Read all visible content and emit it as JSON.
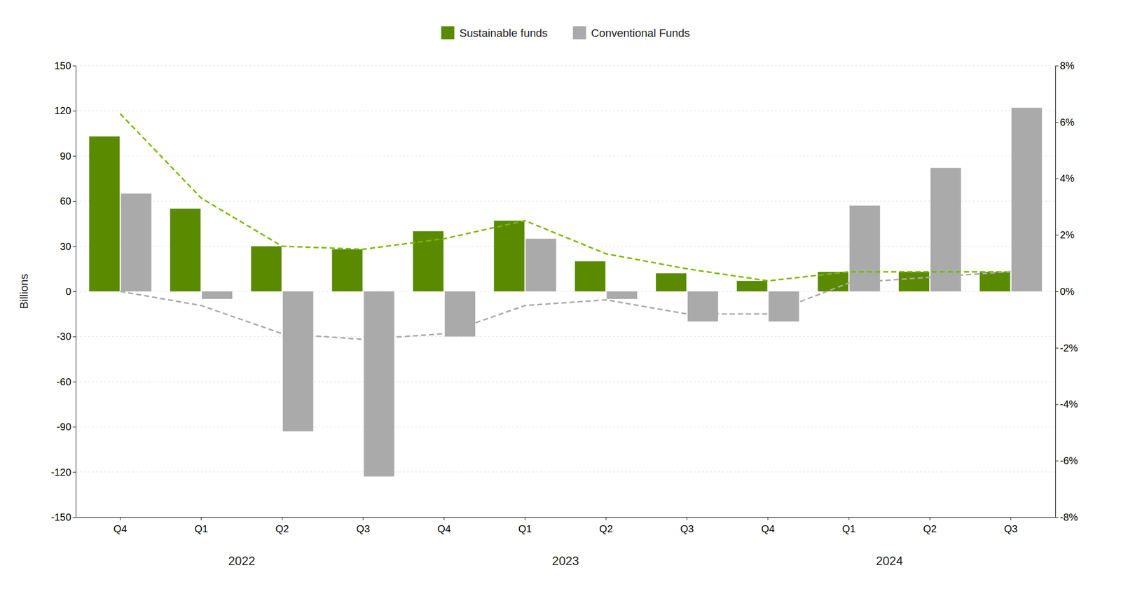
{
  "chart_data": {
    "type": "bar",
    "categories": [
      "Q4",
      "Q1",
      "Q2",
      "Q3",
      "Q4",
      "Q1",
      "Q2",
      "Q3",
      "Q4",
      "Q1",
      "Q2",
      "Q3"
    ],
    "annotations": [
      {
        "text": "2022",
        "x": 1.5
      },
      {
        "text": "2023",
        "x": 5.5
      },
      {
        "text": "2024",
        "x": 9.5
      }
    ],
    "series": [
      {
        "name": "Sustainable funds",
        "type": "bar",
        "color": "#5a8a00",
        "values": [
          103,
          55,
          30,
          28,
          40,
          47,
          20,
          12,
          7,
          13,
          13,
          13
        ]
      },
      {
        "name": "Conventional Funds",
        "type": "bar",
        "color": "#aaaaaa",
        "values": [
          65,
          -5,
          -93,
          -123,
          -30,
          35,
          -5,
          -20,
          -20,
          57,
          82,
          122
        ]
      },
      {
        "type": "line",
        "color": "#7ab800",
        "line_style": "dashed",
        "values": [
          118,
          62,
          30,
          28,
          35,
          47,
          25,
          15,
          7,
          13,
          13,
          13
        ]
      },
      {
        "type": "line",
        "color": "#aaaaaa",
        "line_style": "dashed",
        "axis": "y2",
        "values": [
          0.0,
          -0.5,
          -1.5,
          -1.7,
          -1.5,
          -0.5,
          -0.3,
          -0.8,
          -0.8,
          0.3,
          0.5,
          0.7
        ]
      }
    ],
    "y_label": "Billions",
    "ylim": [
      -150,
      150
    ],
    "yticks": [
      -150,
      -120,
      -90,
      -60,
      -30,
      0,
      30,
      60,
      90,
      120,
      150
    ],
    "y2lim": [
      -8,
      8
    ],
    "y2ticks": [
      {
        "value": -8,
        "label": "-8%"
      },
      {
        "value": -6,
        "label": "-6%"
      },
      {
        "value": -4,
        "label": "-4%"
      },
      {
        "value": -2,
        "label": "-2%"
      },
      {
        "value": 0,
        "label": "0%"
      },
      {
        "value": 2,
        "label": "2%"
      },
      {
        "value": 4,
        "label": "4%"
      },
      {
        "value": 6,
        "label": "6%"
      },
      {
        "value": 8,
        "label": "8%"
      }
    ],
    "grid": true,
    "legend": "top"
  }
}
